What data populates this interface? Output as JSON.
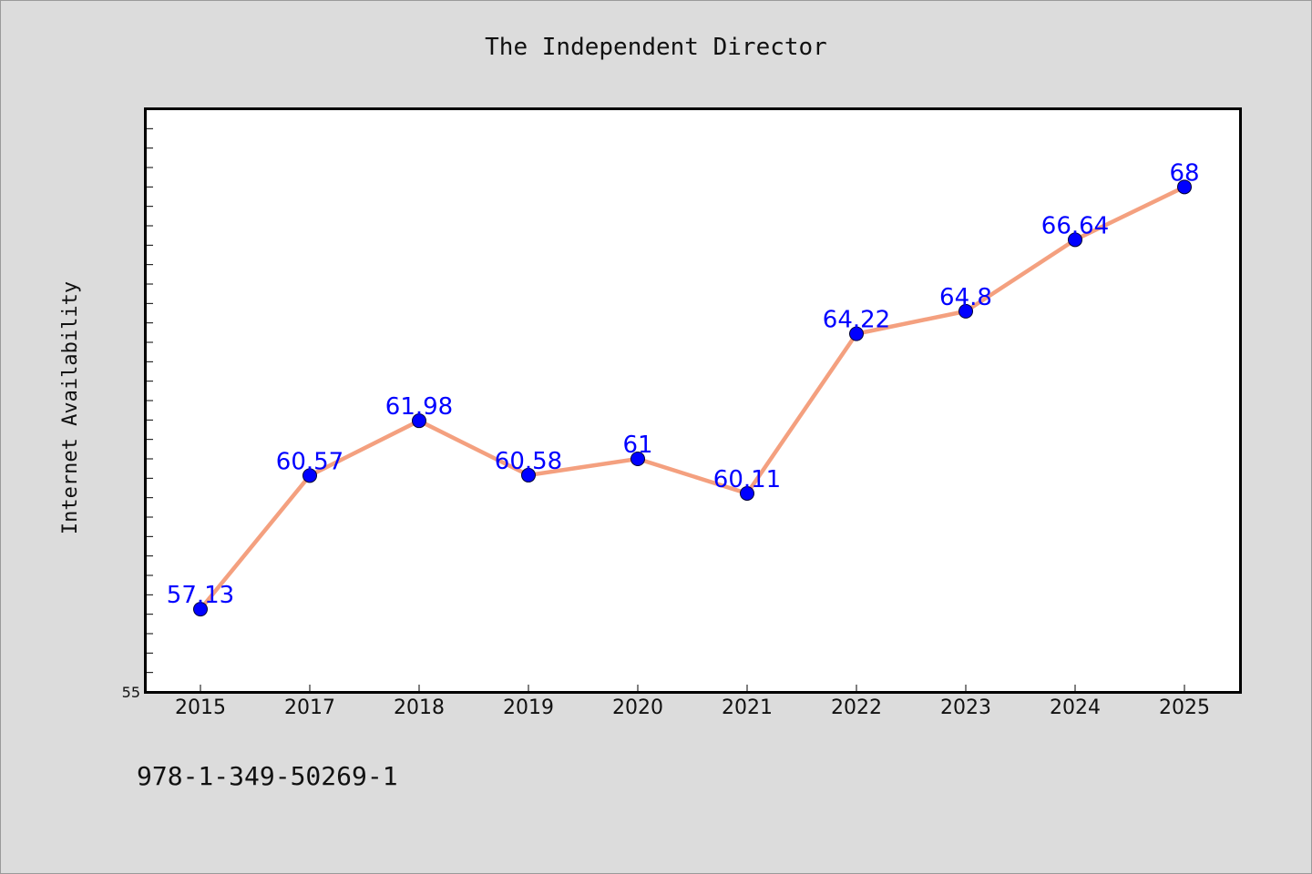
{
  "colors": {
    "background": "#dcdcdc",
    "plot_background": "#ffffff",
    "line": "#f4a07f",
    "marker": "#0000ff",
    "data_label": "#0000ff"
  },
  "footer": {
    "isbn": "978-1-349-50269-1"
  },
  "chart_data": {
    "type": "line",
    "title": "The Independent Director",
    "xlabel": "",
    "ylabel": "Internet Availability",
    "categories": [
      "2015",
      "2017",
      "2018",
      "2019",
      "2020",
      "2021",
      "2022",
      "2023",
      "2024",
      "2025"
    ],
    "series": [
      {
        "values": [
          57.13,
          60.57,
          61.98,
          60.58,
          61,
          60.11,
          64.22,
          64.8,
          66.64,
          68
        ],
        "labels": [
          "57.13",
          "60.57",
          "61.98",
          "60.58",
          "61",
          "60.11",
          "64.22",
          "64.8",
          "66.64",
          "68"
        ]
      }
    ],
    "ylim": [
      55,
      70
    ],
    "yticks_labeled": [
      "55"
    ],
    "grid": false,
    "legend": "none"
  }
}
